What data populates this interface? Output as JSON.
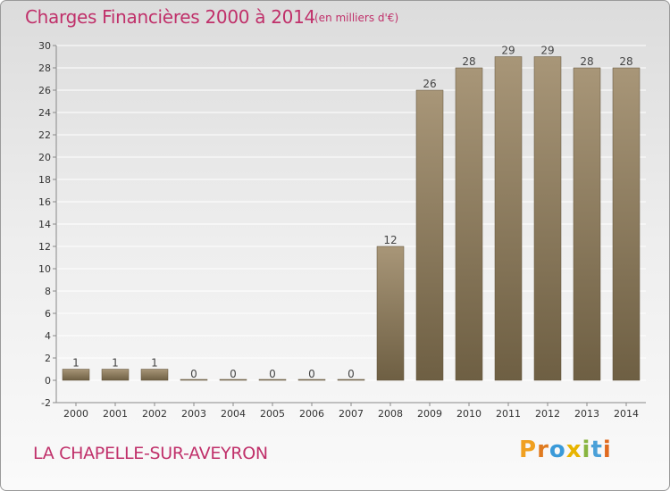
{
  "header": {
    "title": "Charges Financières 2000 à 2014",
    "subtitle": "(en milliers d'€)"
  },
  "footer": {
    "commune": "LA CHAPELLE-SUR-AVEYRON",
    "logo": [
      "P",
      "r",
      "o",
      "x",
      "i",
      "t",
      "i"
    ]
  },
  "colors": {
    "title": "#c0306a",
    "bar_top": "#a89678",
    "bar_bottom": "#6e5f43",
    "grid": "#ffffff",
    "logo": [
      "#f0a020",
      "#e07b20",
      "#3a9ad9",
      "#e8b400",
      "#88b540",
      "#4aa0d8",
      "#e06a20"
    ]
  },
  "chart_data": {
    "type": "bar",
    "title": "Charges Financières 2000 à 2014",
    "subtitle": "(en milliers d'€)",
    "xlabel": "",
    "ylabel": "",
    "categories": [
      "2000",
      "2001",
      "2002",
      "2003",
      "2004",
      "2005",
      "2006",
      "2007",
      "2008",
      "2009",
      "2010",
      "2011",
      "2012",
      "2013",
      "2014"
    ],
    "values": [
      1,
      1,
      1,
      0,
      0,
      0,
      0,
      0,
      12,
      26,
      28,
      29,
      29,
      28,
      28
    ],
    "ylim": [
      -2,
      30
    ],
    "yticks": [
      -2,
      0,
      2,
      4,
      6,
      8,
      10,
      12,
      14,
      16,
      18,
      20,
      22,
      24,
      26,
      28,
      30
    ],
    "grid": true,
    "data_labels": true
  }
}
